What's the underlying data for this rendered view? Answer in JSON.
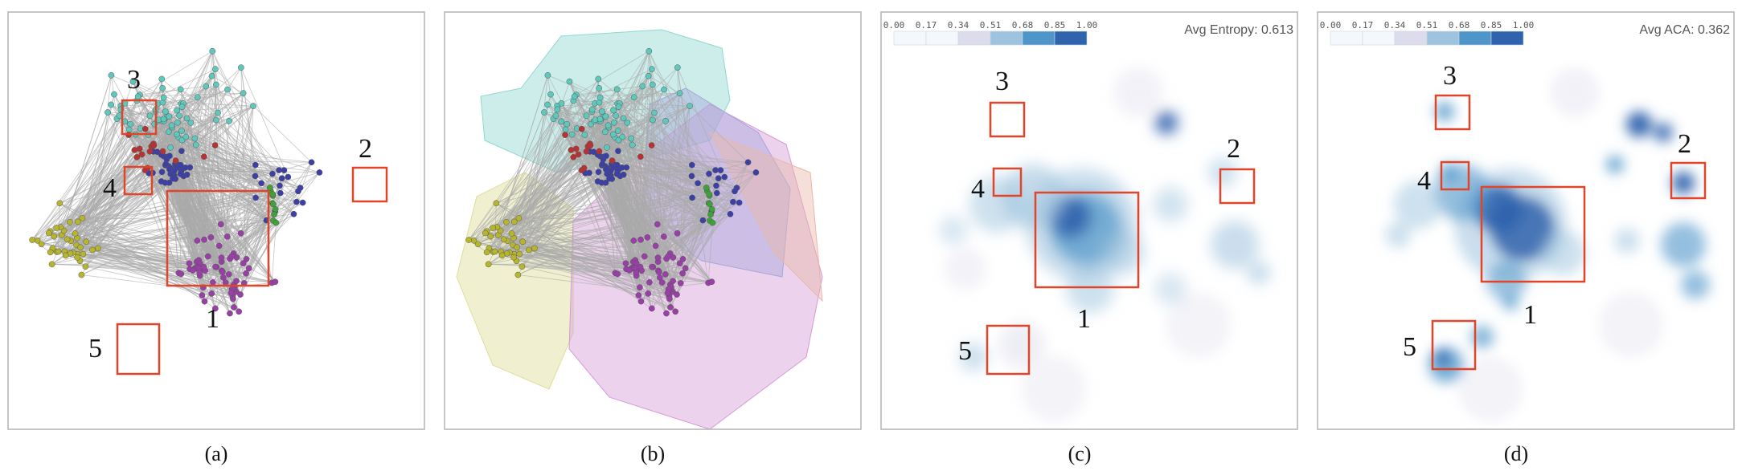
{
  "figure": {
    "panels": [
      {
        "id": "a",
        "caption": "(a)",
        "style": "node-link"
      },
      {
        "id": "b",
        "caption": "(b)",
        "style": "node-link-hulls"
      },
      {
        "id": "c",
        "caption": "(c)",
        "style": "density",
        "metric_label": "Avg Entropy: 0.613"
      },
      {
        "id": "d",
        "caption": "(d)",
        "style": "density",
        "metric_label": "Avg ACA: 0.362"
      }
    ],
    "region_labels": [
      "1",
      "2",
      "3",
      "4",
      "5"
    ],
    "color_legend": {
      "ticks": [
        "0.00",
        "0.17",
        "0.34",
        "0.51",
        "0.68",
        "0.85",
        "1.00"
      ],
      "colors": [
        "#f4f8fc",
        "#f4f8fc",
        "#dcdcec",
        "#9ec3de",
        "#4e95c9",
        "#2f63ad"
      ]
    },
    "node_colors": {
      "teal": "#5ec8bd",
      "blue": "#3b3fa6",
      "purple": "#9a3fa8",
      "olive": "#b7b52d",
      "red": "#b83232",
      "green": "#3ea23a"
    },
    "hull_colors": {
      "teal": "#8fd8d0",
      "purple": "#d49bd6",
      "olive": "#dede9a",
      "blue": "#a7a6db",
      "salmon": "#e9b8a8"
    },
    "edge_color": "#aaaaaa",
    "box_color": "#e0452a",
    "frame_color": "#b3b3b3"
  }
}
